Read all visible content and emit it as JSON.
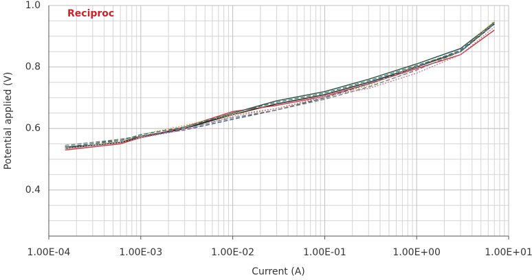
{
  "chart_data": {
    "type": "line",
    "annotation": "Reciproc",
    "annotation_color": "#d0202a",
    "xlabel": "Current (A)",
    "ylabel": "Potential applied (V)",
    "xscale": "log",
    "grid": true,
    "xlim": [
      0.0001,
      10
    ],
    "ylim": [
      0.25,
      1.0
    ],
    "xticks": [
      {
        "value": 0.0001,
        "label": "1.00E-04"
      },
      {
        "value": 0.001,
        "label": "1.00E-03"
      },
      {
        "value": 0.01,
        "label": "1.00E-02"
      },
      {
        "value": 0.1,
        "label": "1.00E-01"
      },
      {
        "value": 1,
        "label": "1.00E+00"
      },
      {
        "value": 10,
        "label": "1.00E+01"
      }
    ],
    "yticks": [
      0.4,
      0.6,
      0.8,
      {
        "value": 1,
        "label": "1.0"
      }
    ],
    "yminor": [
      0.25,
      0.3,
      0.35,
      0.45,
      0.5,
      0.55,
      0.65,
      0.7,
      0.75,
      0.85,
      0.9,
      0.95
    ],
    "x": [
      0.00015,
      0.0003,
      0.0006,
      0.001,
      0.003,
      0.01,
      0.03,
      0.1,
      0.3,
      1,
      3,
      7
    ],
    "series": [
      {
        "color": "#2e4b3c",
        "style": "solid",
        "values": [
          0.54,
          0.545,
          0.555,
          0.575,
          0.6,
          0.65,
          0.69,
          0.72,
          0.76,
          0.81,
          0.86,
          0.945
        ]
      },
      {
        "color": "#1a1a1a",
        "style": "solid",
        "values": [
          0.535,
          0.545,
          0.555,
          0.57,
          0.6,
          0.645,
          0.68,
          0.71,
          0.75,
          0.8,
          0.85,
          0.94
        ]
      },
      {
        "color": "#c8323a",
        "style": "solid",
        "values": [
          0.53,
          0.54,
          0.55,
          0.57,
          0.605,
          0.655,
          0.675,
          0.705,
          0.745,
          0.795,
          0.84,
          0.92
        ]
      },
      {
        "color": "#e0a040",
        "style": "dotted",
        "values": [
          0.535,
          0.545,
          0.56,
          0.58,
          0.61,
          0.645,
          0.665,
          0.7,
          0.74,
          0.805,
          0.85,
          0.95
        ]
      },
      {
        "color": "#3a5a8a",
        "style": "dashed",
        "values": [
          0.54,
          0.55,
          0.565,
          0.575,
          0.595,
          0.63,
          0.66,
          0.7,
          0.745,
          0.8,
          0.855,
          0.94
        ]
      },
      {
        "color": "#7a7a7a",
        "style": "dashed",
        "values": [
          0.545,
          0.555,
          0.565,
          0.575,
          0.6,
          0.635,
          0.66,
          0.695,
          0.735,
          0.79,
          0.85,
          0.94
        ]
      },
      {
        "color": "#c080a0",
        "style": "dotted",
        "values": [
          0.535,
          0.545,
          0.555,
          0.57,
          0.595,
          0.64,
          0.665,
          0.705,
          0.73,
          0.78,
          0.84,
          0.93
        ]
      },
      {
        "color": "#2e7d6e",
        "style": "dashed",
        "values": [
          0.54,
          0.55,
          0.56,
          0.58,
          0.605,
          0.65,
          0.685,
          0.715,
          0.755,
          0.805,
          0.85,
          0.945
        ]
      }
    ]
  }
}
